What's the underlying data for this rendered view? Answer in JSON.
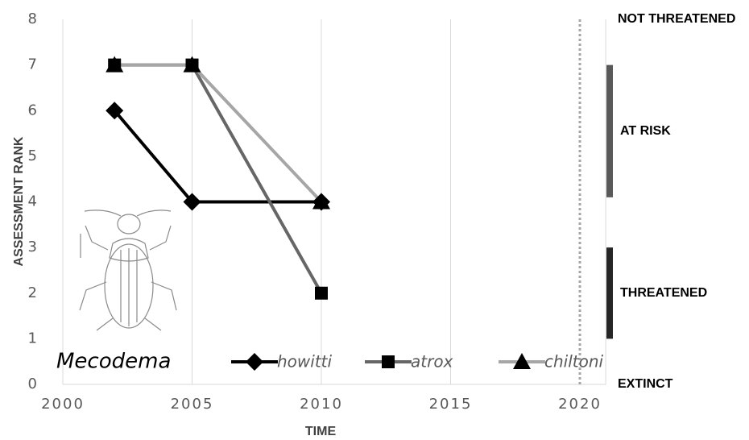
{
  "chart_data": {
    "type": "line",
    "x_label": "TIME",
    "y_label": "ASSESSMENT RANK",
    "legend_title": "Mecodema",
    "series": [
      {
        "name": "howitti",
        "color": "#000000",
        "marker": "diamond",
        "x": [
          2002,
          2005,
          2010
        ],
        "values": [
          6,
          4,
          4
        ]
      },
      {
        "name": "atrox",
        "color": "#666666",
        "marker": "square",
        "x": [
          2002,
          2005,
          2010
        ],
        "values": [
          7,
          7,
          2
        ]
      },
      {
        "name": "chiltoni",
        "color": "#a6a6a6",
        "marker": "triangle",
        "x": [
          2002,
          2005,
          2010
        ],
        "values": [
          7,
          7,
          4
        ]
      }
    ],
    "xlim": [
      2000,
      2021
    ],
    "xticks": [
      2000,
      2005,
      2010,
      2015,
      2020
    ],
    "ylim": [
      0,
      8
    ],
    "yticks": [
      0,
      1,
      2,
      3,
      4,
      5,
      6,
      7,
      8
    ],
    "grid": "x",
    "reference_line_x": 2020,
    "status_labels": [
      {
        "label": "NOT THREATENED",
        "value": 8
      },
      {
        "label": "EXTINCT",
        "value": 0
      }
    ],
    "status_bands": [
      {
        "label": "AT RISK",
        "from": 4.1,
        "to": 7,
        "color": "#595959"
      },
      {
        "label": "THREATENED",
        "from": 1,
        "to": 3,
        "color": "#262626"
      }
    ]
  }
}
